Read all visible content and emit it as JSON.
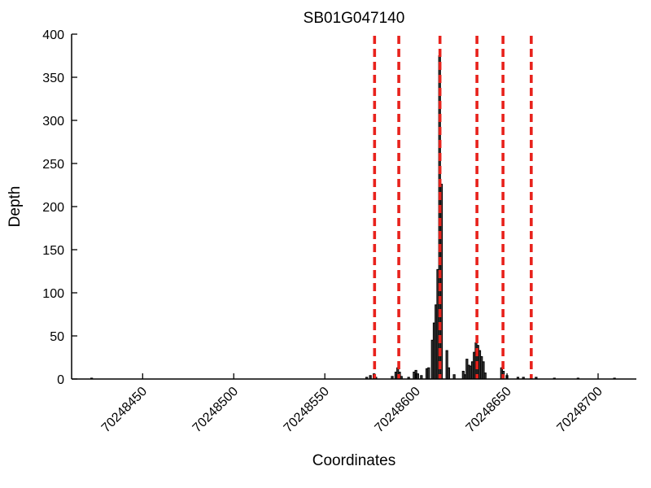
{
  "chart_data": {
    "type": "bar",
    "title": "SB01G047140",
    "xlabel": "Coordinates",
    "ylabel": "Depth",
    "xlim": [
      70248411,
      70248721
    ],
    "ylim": [
      0,
      400
    ],
    "x_ticks": [
      70248450,
      70248500,
      70248550,
      70248600,
      70248650,
      70248700
    ],
    "y_ticks": [
      0,
      50,
      100,
      150,
      200,
      250,
      300,
      350,
      400
    ],
    "grid": false,
    "legend": "none",
    "bar_width": 1,
    "bars": [
      [
        70248422,
        1
      ],
      [
        70248573,
        2
      ],
      [
        70248575,
        4
      ],
      [
        70248577,
        6
      ],
      [
        70248578,
        2
      ],
      [
        70248587,
        3
      ],
      [
        70248589,
        8
      ],
      [
        70248590,
        13
      ],
      [
        70248591,
        8
      ],
      [
        70248592,
        3
      ],
      [
        70248596,
        2
      ],
      [
        70248599,
        8
      ],
      [
        70248600,
        10
      ],
      [
        70248601,
        6
      ],
      [
        70248603,
        4
      ],
      [
        70248606,
        12
      ],
      [
        70248607,
        13
      ],
      [
        70248609,
        45
      ],
      [
        70248610,
        65
      ],
      [
        70248611,
        86
      ],
      [
        70248612,
        127
      ],
      [
        70248613,
        375
      ],
      [
        70248614,
        226
      ],
      [
        70248617,
        33
      ],
      [
        70248618,
        13
      ],
      [
        70248621,
        5
      ],
      [
        70248626,
        9
      ],
      [
        70248627,
        5
      ],
      [
        70248628,
        23
      ],
      [
        70248629,
        16
      ],
      [
        70248630,
        15
      ],
      [
        70248631,
        20
      ],
      [
        70248632,
        31
      ],
      [
        70248633,
        42
      ],
      [
        70248634,
        39
      ],
      [
        70248635,
        33
      ],
      [
        70248636,
        26
      ],
      [
        70248637,
        20
      ],
      [
        70248638,
        7
      ],
      [
        70248647,
        13
      ],
      [
        70248648,
        9
      ],
      [
        70248650,
        4
      ],
      [
        70248656,
        2
      ],
      [
        70248659,
        2
      ],
      [
        70248666,
        2
      ],
      [
        70248676,
        1
      ],
      [
        70248689,
        1
      ],
      [
        70248709,
        1
      ]
    ],
    "vlines": {
      "style": "dashed",
      "positions": [
        70248577.3,
        70248590.6,
        70248613.2,
        70248633.5,
        70248647.8,
        70248663.3
      ]
    },
    "colors": {
      "bar_fill": "#3d3d3d",
      "bar_edge": "#000000",
      "vline": "#e8221c",
      "axis": "#000000",
      "background": "#ffffff"
    }
  }
}
